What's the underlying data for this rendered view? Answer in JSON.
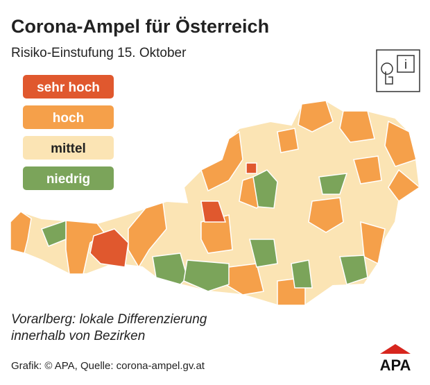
{
  "header": {
    "title": "Corona-Ampel für Österreich",
    "subtitle": "Risiko-Einstufung 15. Oktober"
  },
  "legend": [
    {
      "label": "sehr hoch",
      "color": "#e0582e"
    },
    {
      "label": "hoch",
      "color": "#f5a04a"
    },
    {
      "label": "mittel",
      "color": "#fbe4b4"
    },
    {
      "label": "niedrig",
      "color": "#7ba45a"
    }
  ],
  "note": [
    "Vorarlberg: lokale Differenzierung",
    "innerhalb von Bezirken"
  ],
  "source": "Grafik: © APA, Quelle: corona-ampel.gv.at",
  "logo": "APA",
  "info_icon": "i"
}
